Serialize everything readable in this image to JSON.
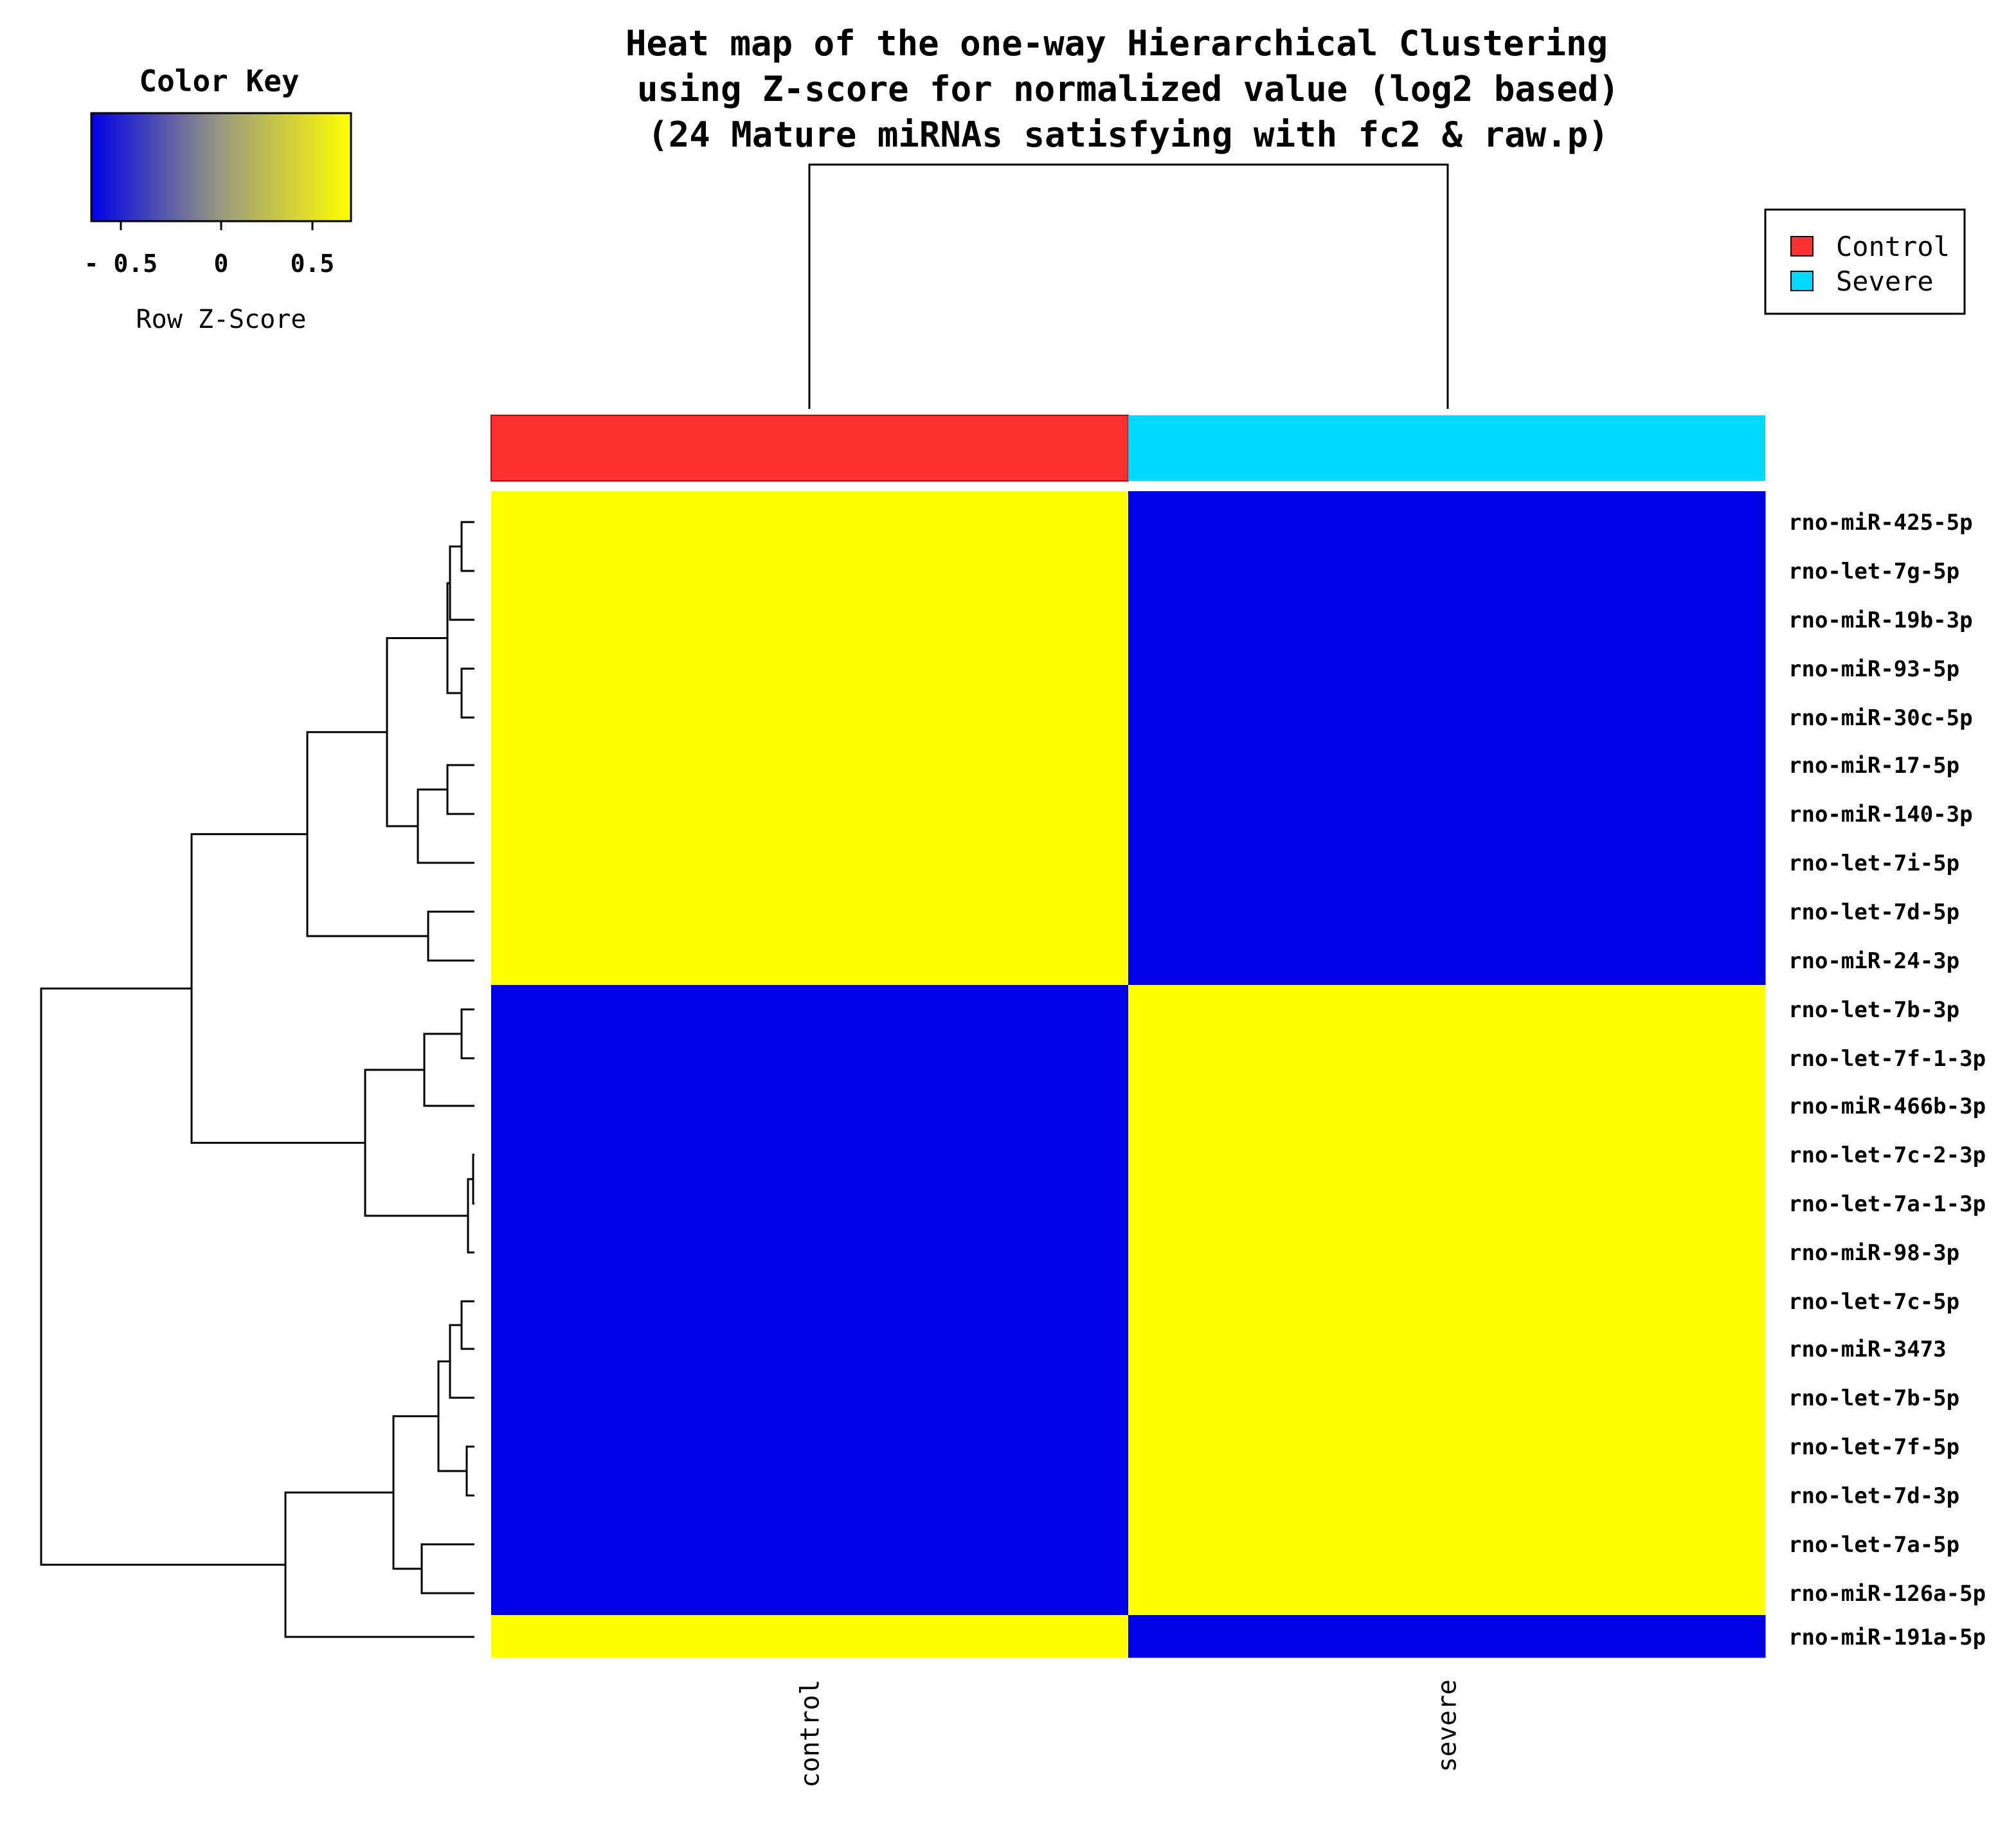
{
  "chart_data": {
    "type": "heatmap",
    "title_lines": [
      "Heat map of the one-way Hierarchical Clustering",
      "using Z-score for normalized value (log2 based)",
      "(24 Mature miRNAs satisfying with fc2 & raw.p)"
    ],
    "columns": [
      "control",
      "severe"
    ],
    "column_groups": [
      "Control",
      "Severe"
    ],
    "rows": [
      "rno-miR-425-5p",
      "rno-let-7g-5p",
      "rno-miR-19b-3p",
      "rno-miR-93-5p",
      "rno-miR-30c-5p",
      "rno-miR-17-5p",
      "rno-miR-140-3p",
      "rno-let-7i-5p",
      "rno-let-7d-5p",
      "rno-miR-24-3p",
      "rno-let-7b-3p",
      "rno-let-7f-1-3p",
      "rno-miR-466b-3p",
      "rno-let-7c-2-3p",
      "rno-let-7a-1-3p",
      "rno-miR-98-3p",
      "rno-let-7c-5p",
      "rno-miR-3473",
      "rno-let-7b-5p",
      "rno-let-7f-5p",
      "rno-let-7d-3p",
      "rno-let-7a-5p",
      "rno-miR-126a-5p",
      "rno-miR-191a-5p"
    ],
    "values": [
      [
        0.7,
        -0.7
      ],
      [
        0.7,
        -0.7
      ],
      [
        0.7,
        -0.7
      ],
      [
        0.7,
        -0.7
      ],
      [
        0.7,
        -0.7
      ],
      [
        0.7,
        -0.7
      ],
      [
        0.7,
        -0.7
      ],
      [
        0.7,
        -0.7
      ],
      [
        0.7,
        -0.7
      ],
      [
        0.7,
        -0.7
      ],
      [
        -0.7,
        0.7
      ],
      [
        -0.7,
        0.7
      ],
      [
        -0.7,
        0.7
      ],
      [
        -0.7,
        0.7
      ],
      [
        -0.7,
        0.7
      ],
      [
        -0.7,
        0.7
      ],
      [
        -0.7,
        0.7
      ],
      [
        -0.7,
        0.7
      ],
      [
        -0.7,
        0.7
      ],
      [
        -0.7,
        0.7
      ],
      [
        -0.7,
        0.7
      ],
      [
        -0.7,
        0.7
      ],
      [
        -0.7,
        0.7
      ],
      [
        0.7,
        -0.7
      ]
    ],
    "color_key": {
      "title": "Color Key",
      "label": "Row Z-Score",
      "ticks": [
        "- 0.5",
        "0",
        "0.5"
      ],
      "range": [
        -0.7,
        0.7
      ],
      "colors": [
        "#0000e6",
        "#9a9a80",
        "#ffff00"
      ]
    },
    "legend": {
      "placement": "top-right",
      "entries": [
        {
          "name": "Control",
          "color": "#ff3030"
        },
        {
          "name": "Severe",
          "color": "#00d9ff"
        }
      ]
    },
    "cell_colors": {
      "high": "#ffff00",
      "low": "#0000e6"
    }
  }
}
